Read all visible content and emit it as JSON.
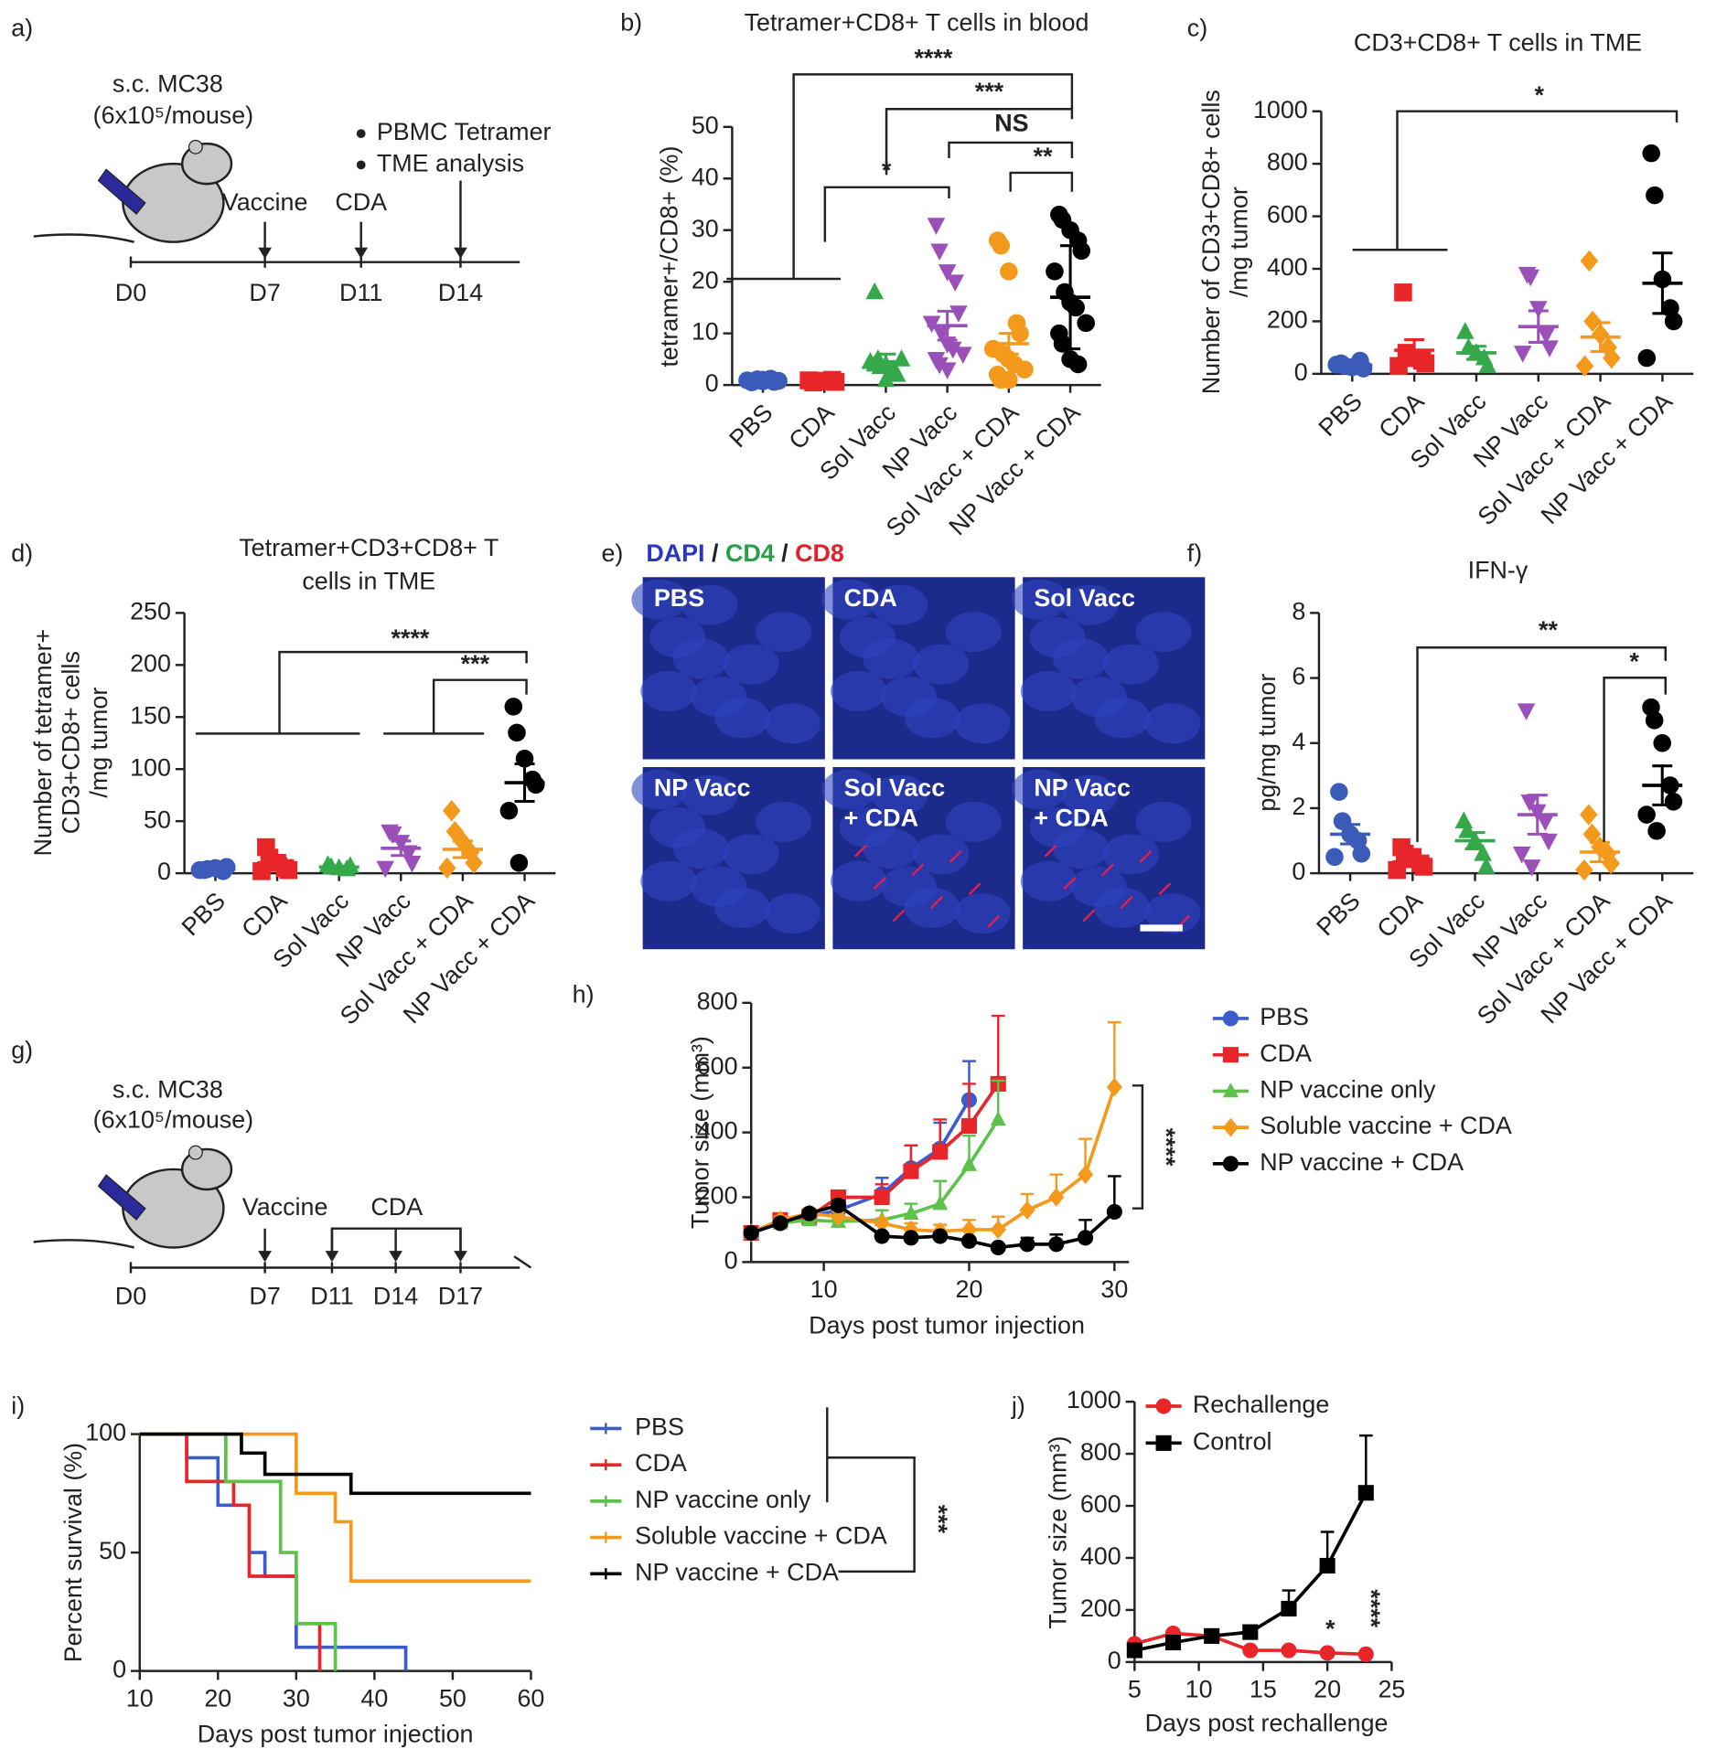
{
  "panel_labels": [
    "a)",
    "b)",
    "c)",
    "d)",
    "e)",
    "f)",
    "g)",
    "h)",
    "i)",
    "j)"
  ],
  "timeline_a": {
    "title": "s.c. MC38",
    "dose": "(6x10⁵/mouse)",
    "legend": [
      "PBMC Tetramer",
      "TME analysis"
    ],
    "events": [
      "Vaccine",
      "CDA"
    ],
    "days": [
      "D0",
      "D7",
      "D11",
      "D14"
    ]
  },
  "timeline_g": {
    "title": "s.c. MC38",
    "dose": "(6x10⁵/mouse)",
    "events": [
      "Vaccine",
      "CDA"
    ],
    "days": [
      "D0",
      "D7",
      "D11",
      "D14",
      "D17"
    ]
  },
  "image_panel": {
    "stains": [
      {
        "text": "DAPI",
        "color": "#2b35c4"
      },
      {
        "text": "CD4",
        "color": "#27a045"
      },
      {
        "text": "CD8",
        "color": "#e0202a"
      }
    ],
    "separator": "/",
    "tiles": [
      [
        "PBS"
      ],
      [
        "CDA"
      ],
      [
        "Sol Vacc"
      ],
      [
        "NP Vacc"
      ],
      [
        "Sol Vacc",
        "+ CDA"
      ],
      [
        "NP Vacc",
        "+ CDA"
      ]
    ]
  },
  "chart_data": [
    {
      "type": "dot",
      "title": [
        "Tetramer+CD8+ T cells in blood"
      ],
      "y_label": [
        "tetramer+/CD8+ (%)"
      ],
      "categories": [
        "PBS",
        "CDA",
        "Sol Vacc",
        "NP Vacc",
        "Sol Vacc + CDA",
        "NP Vacc + CDA"
      ],
      "colors": [
        "#3c5bb8",
        "#e8262a",
        "#35a84a",
        "#9b4fb8",
        "#f39a1c",
        "#000000"
      ],
      "markers": [
        "circle",
        "square",
        "triangle",
        "triangle-down",
        "circle",
        "circle"
      ],
      "values": [
        [
          0.5,
          0.8,
          1,
          1.2,
          0.6,
          0.9,
          1.1,
          0.7,
          1,
          0.8
        ],
        [
          0.5,
          0.7,
          0.8,
          1,
          0.6,
          0.9,
          0.7,
          0.8
        ],
        [
          18,
          5,
          4,
          3,
          2,
          4.5,
          3.5,
          1,
          2.5,
          5,
          4
        ],
        [
          31,
          26,
          22,
          20,
          14,
          12,
          10,
          8,
          7,
          6,
          5,
          4,
          3
        ],
        [
          28,
          27,
          22,
          12,
          10,
          7,
          6,
          5,
          4,
          3,
          2,
          1,
          1
        ],
        [
          33,
          32,
          30,
          28,
          26,
          22,
          18,
          16,
          15,
          12,
          10,
          8,
          5,
          4
        ]
      ],
      "means": [
        0.9,
        0.75,
        4.5,
        11.5,
        8,
        17
      ],
      "errors": [
        0.1,
        0.1,
        1.5,
        2.8,
        2,
        10
      ],
      "ylim": [
        0,
        50
      ],
      "yticks": [
        0,
        10,
        20,
        30,
        40,
        50
      ],
      "annotations": [
        "****",
        "***",
        "NS",
        "*",
        "**"
      ]
    },
    {
      "type": "dot",
      "title": [
        "CD3+CD8+ T cells in TME"
      ],
      "y_label": [
        "Number of CD3+CD8+ cells",
        "/mg tumor"
      ],
      "categories": [
        "PBS",
        "CDA",
        "Sol Vacc",
        "NP Vacc",
        "Sol Vacc + CDA",
        "NP Vacc + CDA"
      ],
      "colors": [
        "#3c5bb8",
        "#e8262a",
        "#35a84a",
        "#9b4fb8",
        "#f39a1c",
        "#000000"
      ],
      "markers": [
        "circle",
        "square",
        "triangle",
        "triangle-down",
        "diamond",
        "circle"
      ],
      "values": [
        [
          40,
          30,
          25,
          50,
          20,
          35
        ],
        [
          310,
          80,
          60,
          50,
          40,
          30,
          60
        ],
        [
          160,
          100,
          80,
          60,
          30
        ],
        [
          380,
          370,
          250,
          150,
          100,
          80
        ],
        [
          430,
          200,
          150,
          100,
          60,
          30
        ],
        [
          840,
          680,
          360,
          250,
          200,
          60
        ]
      ],
      "means": [
        33,
        90,
        80,
        180,
        140,
        345
      ],
      "errors": [
        8,
        40,
        25,
        60,
        55,
        115
      ],
      "ylim": [
        0,
        1000
      ],
      "yticks": [
        0,
        200,
        400,
        600,
        800,
        1000
      ],
      "annotations": [
        "*"
      ]
    },
    {
      "type": "dot",
      "title": [
        "Tetramer+CD3+CD8+ T",
        "cells in TME"
      ],
      "y_label": [
        "Number of tetramer+",
        "CD3+CD8+ cells",
        "/mg tumor"
      ],
      "categories": [
        "PBS",
        "CDA",
        "Sol Vacc",
        "NP Vacc",
        "Sol Vacc + CDA",
        "NP Vacc + CDA"
      ],
      "colors": [
        "#3c5bb8",
        "#e8262a",
        "#35a84a",
        "#9b4fb8",
        "#f39a1c",
        "#000000"
      ],
      "markers": [
        "circle",
        "square",
        "triangle",
        "triangle-down",
        "diamond",
        "circle"
      ],
      "values": [
        [
          3,
          4,
          5,
          2,
          6,
          3
        ],
        [
          25,
          15,
          10,
          5,
          3,
          2
        ],
        [
          8,
          6,
          5,
          4,
          7
        ],
        [
          40,
          38,
          30,
          20,
          10,
          5
        ],
        [
          60,
          40,
          30,
          20,
          10,
          5
        ],
        [
          160,
          135,
          110,
          90,
          85,
          60,
          10
        ]
      ],
      "means": [
        4,
        10,
        6,
        24,
        23,
        87
      ],
      "errors": [
        1,
        4,
        1,
        7,
        8,
        18
      ],
      "ylim": [
        0,
        250
      ],
      "yticks": [
        0,
        50,
        100,
        150,
        200,
        250
      ],
      "annotations": [
        "****",
        "***"
      ]
    },
    {
      "type": "dot",
      "title": [
        "IFN-γ"
      ],
      "y_label": [
        "pg/mg tumor"
      ],
      "categories": [
        "PBS",
        "CDA",
        "Sol Vacc",
        "NP Vacc",
        "Sol Vacc + CDA",
        "NP Vacc + CDA"
      ],
      "colors": [
        "#3c5bb8",
        "#e8262a",
        "#35a84a",
        "#9b4fb8",
        "#f39a1c",
        "#000000"
      ],
      "markers": [
        "circle",
        "square",
        "triangle",
        "triangle-down",
        "diamond",
        "circle"
      ],
      "values": [
        [
          2.5,
          1.6,
          1.2,
          1,
          0.6,
          0.5
        ],
        [
          0.8,
          0.6,
          0.5,
          0.3,
          0.2,
          0.1
        ],
        [
          1.6,
          1.3,
          1,
          0.6,
          0.2
        ],
        [
          5,
          2.2,
          1.9,
          1.6,
          1,
          0.6,
          0.2
        ],
        [
          1.8,
          1.2,
          0.8,
          0.6,
          0.3,
          0.1
        ],
        [
          5.1,
          4.7,
          4,
          2.7,
          2.2,
          1.8,
          1.3
        ]
      ],
      "means": [
        1.2,
        0.35,
        1,
        1.8,
        0.65,
        2.7
      ],
      "errors": [
        0.3,
        0.15,
        0.25,
        0.6,
        0.3,
        0.6
      ],
      "ylim": [
        0,
        8
      ],
      "yticks": [
        0,
        2,
        4,
        6,
        8
      ],
      "annotations": [
        "**",
        "*"
      ]
    },
    {
      "type": "line",
      "x_label": "Days post tumor injection",
      "y_label": "Tumor size (mm³)",
      "xlim": [
        5,
        31
      ],
      "xticks": [
        10,
        20,
        30
      ],
      "ylim": [
        0,
        800
      ],
      "yticks": [
        0,
        200,
        400,
        600,
        800
      ],
      "annotations": [
        "****"
      ],
      "series": [
        {
          "name": "PBS",
          "color": "#3c5bcd",
          "marker": "circle",
          "x": [
            5,
            7,
            9,
            11,
            14,
            16,
            18,
            20
          ],
          "values": [
            90,
            120,
            140,
            160,
            210,
            290,
            350,
            500
          ],
          "errors": [
            5,
            15,
            20,
            20,
            50,
            70,
            80,
            120
          ]
        },
        {
          "name": "CDA",
          "color": "#e8262a",
          "marker": "square",
          "x": [
            5,
            7,
            9,
            11,
            14,
            16,
            18,
            20,
            22
          ],
          "values": [
            90,
            130,
            140,
            200,
            200,
            280,
            340,
            420,
            550
          ],
          "errors": [
            5,
            15,
            20,
            20,
            40,
            80,
            100,
            130,
            210
          ]
        },
        {
          "name": "NP vaccine only",
          "color": "#5cc24a",
          "marker": "triangle",
          "x": [
            5,
            7,
            9,
            11,
            14,
            16,
            18,
            20,
            22
          ],
          "values": [
            90,
            120,
            130,
            125,
            130,
            150,
            180,
            300,
            440
          ],
          "errors": [
            5,
            10,
            10,
            10,
            30,
            30,
            70,
            90,
            120
          ]
        },
        {
          "name": "Soluble vaccine + CDA",
          "color": "#f39a1c",
          "marker": "diamond",
          "x": [
            5,
            7,
            9,
            11,
            14,
            16,
            18,
            20,
            22,
            24,
            26,
            28,
            30
          ],
          "values": [
            90,
            130,
            150,
            140,
            120,
            100,
            95,
            100,
            100,
            160,
            200,
            270,
            540
          ],
          "errors": [
            5,
            10,
            15,
            15,
            15,
            20,
            20,
            30,
            40,
            50,
            70,
            110,
            200
          ]
        },
        {
          "name": "NP vaccine + CDA",
          "color": "#000000",
          "marker": "circle",
          "x": [
            5,
            7,
            9,
            11,
            14,
            16,
            18,
            20,
            22,
            24,
            26,
            28,
            30
          ],
          "values": [
            90,
            120,
            150,
            175,
            80,
            75,
            80,
            65,
            45,
            55,
            55,
            75,
            155
          ],
          "errors": [
            5,
            10,
            10,
            15,
            10,
            10,
            10,
            10,
            10,
            20,
            30,
            55,
            110
          ]
        }
      ]
    },
    {
      "type": "step",
      "x_label": "Days post tumor injection",
      "y_label": "Percent survival (%)",
      "xlim": [
        10,
        60
      ],
      "xticks": [
        10,
        20,
        30,
        40,
        50,
        60
      ],
      "ylim": [
        0,
        100
      ],
      "yticks": [
        0,
        50,
        100
      ],
      "annotations": [
        "***"
      ],
      "series": [
        {
          "name": "PBS",
          "color": "#3c5bcd",
          "x": [
            10,
            16,
            20,
            24,
            26,
            30,
            44
          ],
          "values": [
            100,
            90,
            70,
            50,
            40,
            10,
            0
          ]
        },
        {
          "name": "CDA",
          "color": "#e8262a",
          "x": [
            10,
            16,
            22,
            24,
            30,
            33
          ],
          "values": [
            100,
            80,
            70,
            40,
            20,
            0
          ]
        },
        {
          "name": "NP vaccine only",
          "color": "#5cc24a",
          "x": [
            10,
            21,
            28,
            30,
            35
          ],
          "values": [
            100,
            80,
            50,
            20,
            0
          ]
        },
        {
          "name": "Soluble vaccine + CDA",
          "color": "#f39a1c",
          "x": [
            10,
            30,
            35,
            37,
            60
          ],
          "values": [
            100,
            75,
            63,
            38,
            38
          ]
        },
        {
          "name": "NP vaccine + CDA",
          "color": "#000000",
          "x": [
            10,
            23,
            26,
            37,
            60
          ],
          "values": [
            100,
            92,
            83,
            75,
            75
          ]
        }
      ]
    },
    {
      "type": "line",
      "x_label": "Days post rechallenge",
      "y_label": "Tumor size (mm³)",
      "xlim": [
        5,
        25
      ],
      "xticks": [
        5,
        10,
        15,
        20,
        25
      ],
      "ylim": [
        0,
        1000
      ],
      "yticks": [
        0,
        200,
        400,
        600,
        800,
        1000
      ],
      "annotations": [
        "*",
        "****"
      ],
      "series": [
        {
          "name": "Rechallenge",
          "color": "#e8262a",
          "marker": "circle",
          "x": [
            5,
            8,
            11,
            14,
            17,
            20,
            23
          ],
          "values": [
            70,
            110,
            100,
            45,
            45,
            35,
            30
          ]
        },
        {
          "name": "Control",
          "color": "#000000",
          "marker": "square",
          "x": [
            5,
            8,
            11,
            14,
            17,
            20,
            23
          ],
          "values": [
            45,
            75,
            100,
            115,
            205,
            370,
            650
          ],
          "errors": [
            0,
            10,
            10,
            15,
            70,
            130,
            220
          ]
        }
      ]
    }
  ]
}
